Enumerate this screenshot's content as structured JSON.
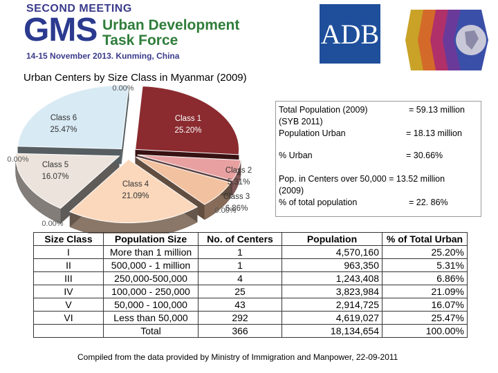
{
  "header": {
    "eyebrow": "SECOND MEETING",
    "gms": "GMS",
    "urban_line1": "Urban Development",
    "urban_line2": "Task Force",
    "date": "14-15 November 2013. Kunming, China",
    "adb": "ADB"
  },
  "chart_data": {
    "type": "pie",
    "title": "Urban Centers by Size Class in Myanmar (2009)",
    "categories": [
      "Class 1",
      "Class 2",
      "Class 3",
      "Class 4",
      "Class 5",
      "Class 6"
    ],
    "values": [
      25.2,
      5.31,
      6.86,
      21.09,
      16.07,
      25.47
    ],
    "labels": [
      "25.20%",
      "5.31%",
      "6.86%",
      "21.09%",
      "16.07%",
      "25.47%"
    ],
    "exploded": true,
    "three_d": true,
    "artifact_labels": [
      "0.00%",
      "0.00%",
      "0.00%",
      "0.00%"
    ],
    "colors": [
      "#8b2b2f",
      "#e8a0a0",
      "#f2c2a0",
      "#fbd8bc",
      "#ece4dc",
      "#d8eaf4"
    ]
  },
  "info": {
    "total_label": "Total Population (2009)",
    "total_label2": "(SYB 2011)",
    "total_value": "= 59.13 million",
    "urban_label": "Population Urban",
    "urban_value": "= 18.13 million",
    "pct_urban_label": "% Urban",
    "pct_urban_value": "= 30.66%",
    "centers_label": "Pop. in Centers over 50,000 = 13.52 million",
    "centers_label2": "(2009)",
    "centers_pct_label": "%  of total population",
    "centers_pct_value": "= 22. 86%"
  },
  "table": {
    "headers": [
      "Size Class",
      "Population Size",
      "No. of Centers",
      "Population",
      "% of Total Urban"
    ],
    "rows": [
      [
        "I",
        "More than 1 million",
        "1",
        "4,570,160",
        "25.20%"
      ],
      [
        "II",
        "500,000 - 1 million",
        "1",
        "963,350",
        "5.31%"
      ],
      [
        "III",
        "250,000-500,000",
        "4",
        "1,243,408",
        "6.86%"
      ],
      [
        "IV",
        "100,000 - 250,000",
        "25",
        "3,823,984",
        "21.09%"
      ],
      [
        "V",
        "50,000 - 100,000",
        "43",
        "2,914,725",
        "16.07%"
      ],
      [
        "VI",
        "Less than 50,000",
        "292",
        "4,619,027",
        "25.47%"
      ]
    ],
    "total": [
      "",
      "Total",
      "366",
      "18,134,654",
      "100.00%"
    ]
  },
  "footnote": "Compiled from the data provided by Ministry of Immigration and Manpower, 22-09-2011"
}
